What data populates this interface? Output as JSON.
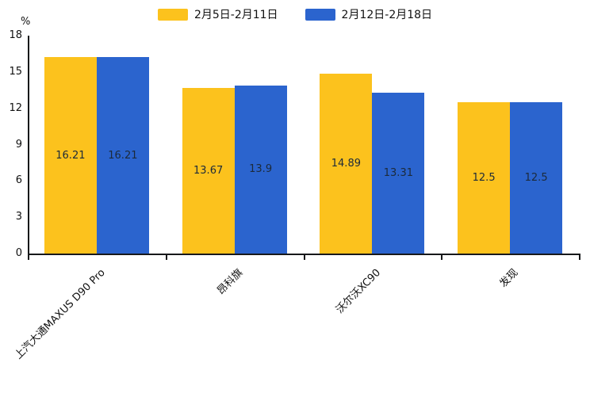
{
  "legend": {
    "items": [
      {
        "label": "2月5日-2月11日",
        "color": "#FCC21D"
      },
      {
        "label": "2月12日-2月18日",
        "color": "#2B64CE"
      }
    ]
  },
  "chart_data": {
    "type": "bar",
    "title": "",
    "xlabel": "",
    "ylabel": "%",
    "categories": [
      "上汽大通MAXUS D90 Pro",
      "昂科旗",
      "沃尔沃XC90",
      "发现"
    ],
    "series": [
      {
        "name": "2月5日-2月11日",
        "color": "#FCC21D",
        "values": [
          16.21,
          13.67,
          14.89,
          12.5
        ]
      },
      {
        "name": "2月12日-2月18日",
        "color": "#2B64CE",
        "values": [
          16.21,
          13.9,
          13.31,
          12.5
        ]
      }
    ],
    "ylim": [
      0,
      18
    ],
    "yticks": [
      0,
      3,
      6,
      9,
      12,
      15,
      18
    ],
    "grid": false,
    "legend_position": "top",
    "value_labels": "inside-middle"
  }
}
